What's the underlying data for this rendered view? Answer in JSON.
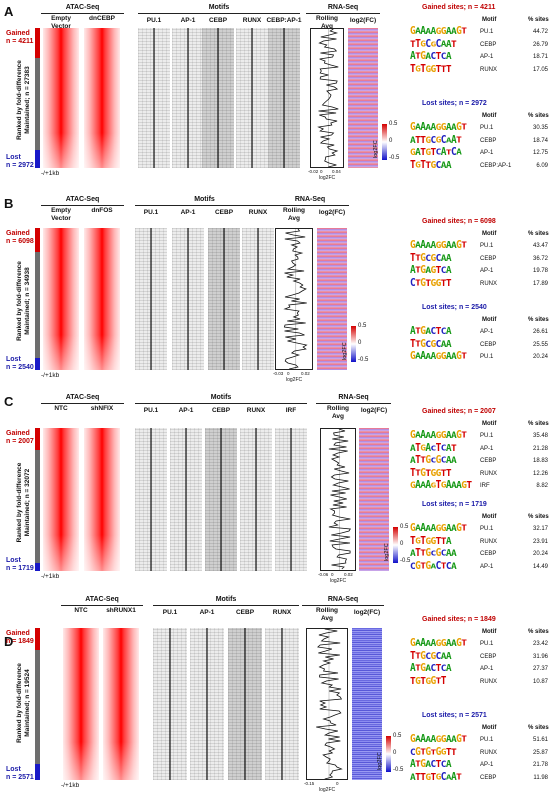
{
  "panels": [
    {
      "letter": "A",
      "gained": {
        "label": "Gained",
        "n": "n = 4211"
      },
      "maintained": "Ranked by fold-difference\nMaintained; n = 27383",
      "lost": {
        "label": "Lost",
        "n": "n = 2972"
      },
      "atac_header": "ATAC-Seq",
      "conditions": [
        "Empty\nVector",
        "dnCEBP"
      ],
      "motifs_header": "Motifs",
      "motifs": [
        "PU.1",
        "AP-1",
        "CEBP",
        "RUNX",
        "CEBP:AP-1"
      ],
      "rna_header": "RNA-Seq",
      "rolling": "Rolling\nAvg",
      "log2fc": "log2(FC)",
      "kb": "-/+1kb",
      "axis_ticks": [
        "-0.02",
        "0",
        "0.04"
      ],
      "axis_label": "log2FC",
      "cbar": {
        "top": "0.5",
        "mid": "0",
        "bot": "-0.5",
        "title": "log2FC"
      },
      "gained_sites": {
        "title": "Gained sites; n = 4211",
        "rows": [
          {
            "logo": "GAAAAGGAAGT",
            "motif": "PU.1",
            "pct": "44.72"
          },
          {
            "logo": "TTGCGCAAT",
            "motif": "CEBP",
            "pct": "26.79"
          },
          {
            "logo": "ATGACTCA",
            "motif": "AP-1",
            "pct": "18.71"
          },
          {
            "logo": "TGTGGTTT",
            "motif": "RUNX",
            "pct": "17.05"
          }
        ]
      },
      "lost_sites": {
        "title": "Lost sites; n = 2972",
        "rows": [
          {
            "logo": "GAAAAGGAAGT",
            "motif": "PU.1",
            "pct": "30.35"
          },
          {
            "logo": "ATTGCGCAAT",
            "motif": "CEBP",
            "pct": "18.74"
          },
          {
            "logo": "GATGTCATCA",
            "motif": "AP-1",
            "pct": "12.75"
          },
          {
            "logo": "TGTTGCAA",
            "motif": "CEBP:AP-1",
            "pct": "6.09"
          }
        ]
      }
    },
    {
      "letter": "B",
      "gained": {
        "label": "Gained",
        "n": "n = 6098"
      },
      "maintained": "Ranked by fold-difference\nMaintained; n = 34938",
      "lost": {
        "label": "Lost",
        "n": "n = 2540"
      },
      "atac_header": "ATAC-Seq",
      "conditions": [
        "Empty\nVector",
        "dnFOS"
      ],
      "motifs_header": "Motifs",
      "motifs": [
        "PU.1",
        "AP-1",
        "CEBP",
        "RUNX"
      ],
      "rna_header": "RNA-Seq",
      "rolling": "Rolling\nAvg",
      "log2fc": "log2(FC)",
      "kb": "-/+1kb",
      "axis_ticks": [
        "-0.03",
        "0",
        "0.02"
      ],
      "axis_label": "log2FC",
      "cbar": {
        "top": "0.5",
        "mid": "0",
        "bot": "-0.5",
        "title": "log2FC"
      },
      "gained_sites": {
        "title": "Gained sites; n = 6098",
        "rows": [
          {
            "logo": "GAAAAGGAAGT",
            "motif": "PU.1",
            "pct": "43.47"
          },
          {
            "logo": "TTGCGCAA",
            "motif": "CEBP",
            "pct": "36.72"
          },
          {
            "logo": "ATGAGTCA",
            "motif": "AP-1",
            "pct": "19.78"
          },
          {
            "logo": "CTGTGGTT",
            "motif": "RUNX",
            "pct": "17.89"
          }
        ]
      },
      "lost_sites": {
        "title": "Lost sites; n = 2540",
        "rows": [
          {
            "logo": "ATGACTCA",
            "motif": "AP-1",
            "pct": "26.61"
          },
          {
            "logo": "TTGCGCAA",
            "motif": "CEBP",
            "pct": "25.55"
          },
          {
            "logo": "GAAAAGGAAGT",
            "motif": "PU.1",
            "pct": "20.24"
          }
        ]
      }
    },
    {
      "letter": "C",
      "gained": {
        "label": "Gained",
        "n": "n = 2007"
      },
      "maintained": "Ranked by fold-difference\nMaintained; n = 32072",
      "lost": {
        "label": "Lost",
        "n": "n = 1719"
      },
      "atac_header": "ATAC-Seq",
      "conditions": [
        "NTC",
        "shNFIX"
      ],
      "motifs_header": "Motifs",
      "motifs": [
        "PU.1",
        "AP-1",
        "CEBP",
        "RUNX",
        "IRF"
      ],
      "rna_header": "RNA-Seq",
      "rolling": "Rolling\nAvg",
      "log2fc": "log2(FC)",
      "kb": "-/+1kb",
      "axis_ticks": [
        "-0.06",
        "0",
        "0.02"
      ],
      "axis_label": "log2FC",
      "cbar": {
        "top": "0.5",
        "mid": "0",
        "bot": "-0.5",
        "title": "log2FC"
      },
      "gained_sites": {
        "title": "Gained sites; n = 2007",
        "rows": [
          {
            "logo": "GAAAAGGAAGT",
            "motif": "PU.1",
            "pct": "35.48"
          },
          {
            "logo": "ATGACTCAT",
            "motif": "AP-1",
            "pct": "21.28"
          },
          {
            "logo": "ATTGCGCAA",
            "motif": "CEBP",
            "pct": "18.83"
          },
          {
            "logo": "TTGTGGTT",
            "motif": "RUNX",
            "pct": "12.26"
          },
          {
            "logo": "GAAAGTGAAAGT",
            "motif": "IRF",
            "pct": "8.82"
          }
        ]
      },
      "lost_sites": {
        "title": "Lost sites; n = 1719",
        "rows": [
          {
            "logo": "GAAAAGGAAGT",
            "motif": "PU.1",
            "pct": "32.17"
          },
          {
            "logo": "TGTGGTTA",
            "motif": "RUNX",
            "pct": "23.91"
          },
          {
            "logo": "ATTGCGCAA",
            "motif": "CEBP",
            "pct": "20.24"
          },
          {
            "logo": "CGTGACTCA",
            "motif": "AP-1",
            "pct": "14.49"
          }
        ]
      }
    },
    {
      "letter": "D",
      "gained": {
        "label": "Gained",
        "n": "n = 1849"
      },
      "maintained": "Ranked by fold-difference\nMaintained; n = 19524",
      "lost": {
        "label": "Lost",
        "n": "n = 2571"
      },
      "atac_header": "ATAC-Seq",
      "conditions": [
        "NTC",
        "shRUNX1"
      ],
      "motifs_header": "Motifs",
      "motifs": [
        "PU.1",
        "AP-1",
        "CEBP",
        "RUNX"
      ],
      "rna_header": "RNA-Seq",
      "rolling": "Rolling\nAvg",
      "log2fc": "log2(FC)",
      "kb": "-/+1kb",
      "axis_ticks": [
        "-0.15",
        "0"
      ],
      "axis_label": "log2FC",
      "cbar": {
        "top": "0.5",
        "mid": "0",
        "bot": "-0.5",
        "title": "log2FC"
      },
      "gained_sites": {
        "title": "Gained sites; n = 1849",
        "rows": [
          {
            "logo": "GAAAAGGAAGT",
            "motif": "PU.1",
            "pct": "23.42"
          },
          {
            "logo": "TTGCGCAA",
            "motif": "CEBP",
            "pct": "31.96"
          },
          {
            "logo": "ATGACTCA",
            "motif": "AP-1",
            "pct": "27.37"
          },
          {
            "logo": "TGTGGTT",
            "motif": "RUNX",
            "pct": "10.87"
          }
        ]
      },
      "lost_sites": {
        "title": "Lost sites; n = 2571",
        "rows": [
          {
            "logo": "GAAAAGGAAGT",
            "motif": "PU.1",
            "pct": "51.61"
          },
          {
            "logo": "CGTGTGGTT",
            "motif": "RUNX",
            "pct": "25.87"
          },
          {
            "logo": "ATGACTCA",
            "motif": "AP-1",
            "pct": "21.78"
          },
          {
            "logo": "ATTGTGCAAT",
            "motif": "CEBP",
            "pct": "11.98"
          }
        ]
      }
    }
  ],
  "table_headers": {
    "motif": "Motif",
    "pct": "% sites"
  },
  "colors": {
    "gained": "#c00000",
    "lost": "#1a1aa8",
    "heatmap": "#ff0000"
  }
}
